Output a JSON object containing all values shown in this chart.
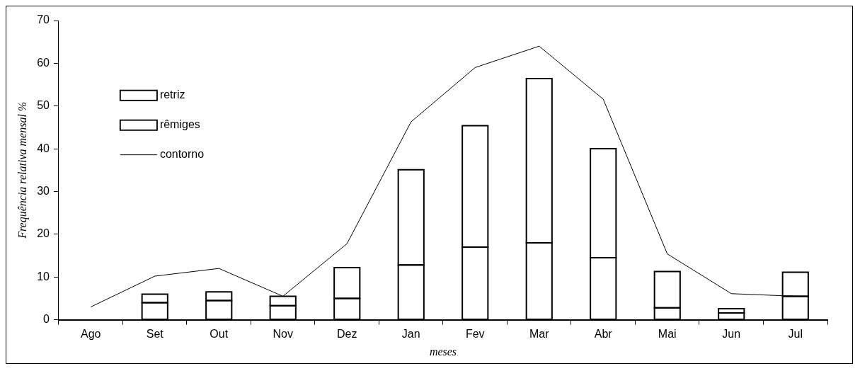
{
  "chart_data": {
    "type": "bar",
    "stacked": true,
    "xlabel": "meses",
    "ylabel": "Frequência relativa mensal %",
    "categories": [
      "Ago",
      "Set",
      "Out",
      "Nov",
      "Dez",
      "Jan",
      "Fev",
      "Mar",
      "Abr",
      "Mai",
      "Jun",
      "Jul"
    ],
    "series": [
      {
        "name": "retriz",
        "color": "#ffffff",
        "values": [
          0,
          4,
          4.5,
          3.3,
          5,
          12.8,
          17,
          18,
          14.5,
          2.8,
          1.6,
          5.5
        ]
      },
      {
        "name": "rêmiges",
        "color": "#ffffff",
        "values": [
          0,
          2,
          2,
          2.2,
          7.2,
          22.3,
          28.4,
          38.4,
          25.5,
          8.5,
          1,
          5.6
        ]
      },
      {
        "name": "contorno",
        "type": "line",
        "color": "#000000",
        "values": [
          3,
          10.2,
          12,
          5.5,
          17.8,
          46.3,
          59,
          64,
          51.6,
          15.4,
          6.1,
          5.5
        ]
      }
    ],
    "ylim": [
      0,
      70
    ],
    "yticks": [
      0,
      10,
      20,
      30,
      40,
      50,
      60,
      70
    ],
    "grid": false,
    "legend": "top left",
    "marker": "none",
    "line_style": "solid"
  }
}
